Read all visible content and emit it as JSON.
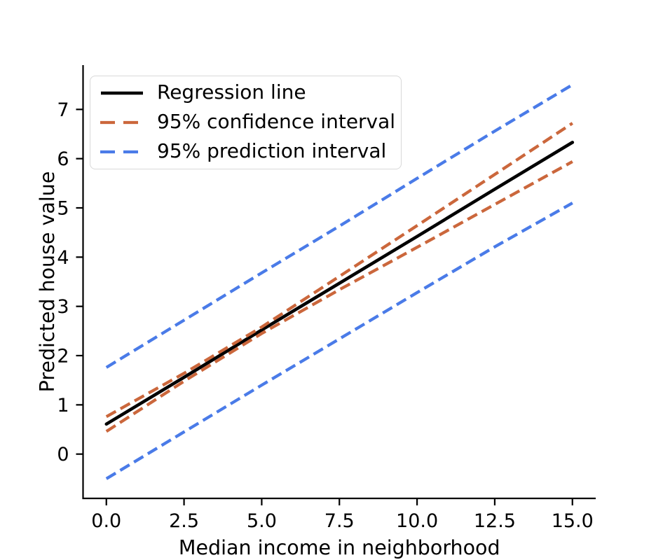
{
  "chart_data": {
    "type": "line",
    "title": "",
    "xlabel": "Median income in neighborhood",
    "ylabel": "Predicted house value",
    "xlim": [
      -0.75,
      15.75
    ],
    "ylim": [
      -0.9,
      7.9
    ],
    "grid": false,
    "legend_position": "upper left",
    "xticks": {
      "values": [
        0,
        2.5,
        5,
        7.5,
        10,
        12.5,
        15
      ],
      "labels": [
        "0.0",
        "2.5",
        "5.0",
        "7.5",
        "10.0",
        "12.5",
        "15.0"
      ]
    },
    "yticks": {
      "values": [
        0,
        1,
        2,
        3,
        4,
        5,
        6,
        7
      ],
      "labels": [
        "0",
        "1",
        "2",
        "3",
        "4",
        "5",
        "6",
        "7"
      ]
    },
    "x": [
      0,
      2.5,
      5,
      7.5,
      10,
      12.5,
      15
    ],
    "series": [
      {
        "name": "regression-line",
        "label": "Regression line",
        "color": "#000000",
        "style": "solid",
        "width": 4.6,
        "values": [
          0.61,
          1.56,
          2.52,
          3.47,
          4.42,
          5.38,
          6.33
        ]
      },
      {
        "name": "ci-upper-line",
        "label": "95% confidence interval (upper)",
        "color": "#CB673C",
        "style": "dashed",
        "width": 4.3,
        "values": [
          0.76,
          1.64,
          2.58,
          3.61,
          4.64,
          5.68,
          6.72
        ]
      },
      {
        "name": "ci-lower-line",
        "label": "95% confidence interval (lower)",
        "color": "#CB673C",
        "style": "dashed",
        "width": 4.3,
        "values": [
          0.46,
          1.48,
          2.45,
          3.34,
          4.2,
          5.07,
          5.94
        ]
      },
      {
        "name": "pi-upper-line",
        "label": "95% prediction interval (upper)",
        "color": "#4A7BE8",
        "style": "dashed",
        "width": 4.3,
        "values": [
          1.76,
          2.72,
          3.68,
          4.63,
          5.6,
          6.56,
          7.5
        ]
      },
      {
        "name": "pi-lower-line",
        "label": "95% prediction interval (lower)",
        "color": "#4A7BE8",
        "style": "dashed",
        "width": 4.3,
        "values": [
          -0.5,
          0.45,
          1.4,
          2.34,
          3.28,
          4.21,
          5.1
        ]
      }
    ]
  },
  "legend": {
    "items": [
      {
        "label": "Regression line",
        "color": "#000000",
        "style": "solid"
      },
      {
        "label": "95% confidence interval",
        "color": "#CB673C",
        "style": "dashed"
      },
      {
        "label": "95% prediction interval",
        "color": "#4A7BE8",
        "style": "dashed"
      }
    ]
  },
  "colors": {
    "background": "#ffffff",
    "axis": "#000000",
    "legend_border": "#d8d8d8"
  }
}
